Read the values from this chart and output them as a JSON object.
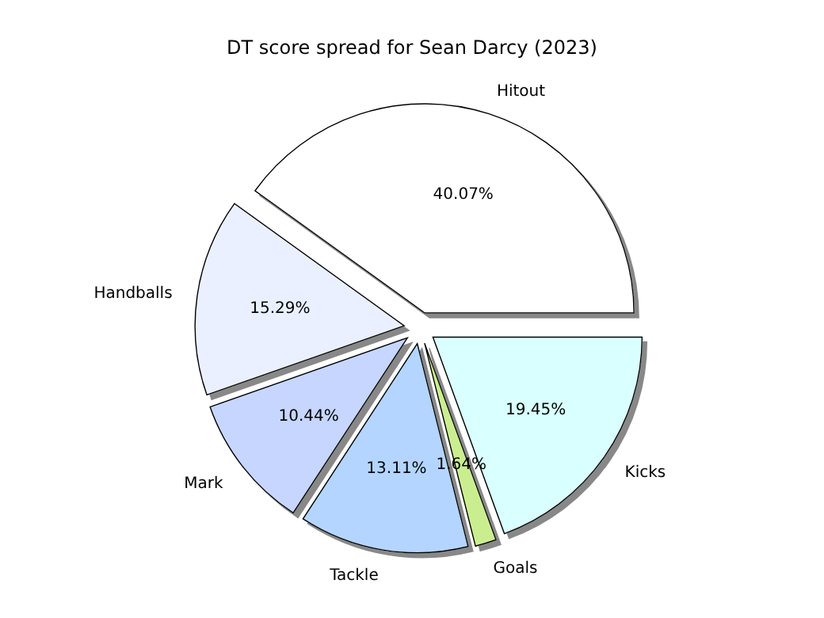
{
  "chart_data": {
    "type": "pie",
    "title": "DT score spread for Sean Darcy (2023)",
    "categories": [
      "Hitout",
      "Handballs",
      "Mark",
      "Tackle",
      "Goals",
      "Kicks"
    ],
    "values": [
      40.07,
      15.29,
      10.44,
      13.11,
      1.64,
      19.45
    ],
    "value_labels": [
      "40.07%",
      "15.29%",
      "10.44%",
      "13.11%",
      "1.64%",
      "19.45%"
    ],
    "colors": [
      "#ffffff",
      "#eaf0ff",
      "#c6d6ff",
      "#b3d5ff",
      "#caee8f",
      "#d9ffff"
    ]
  }
}
